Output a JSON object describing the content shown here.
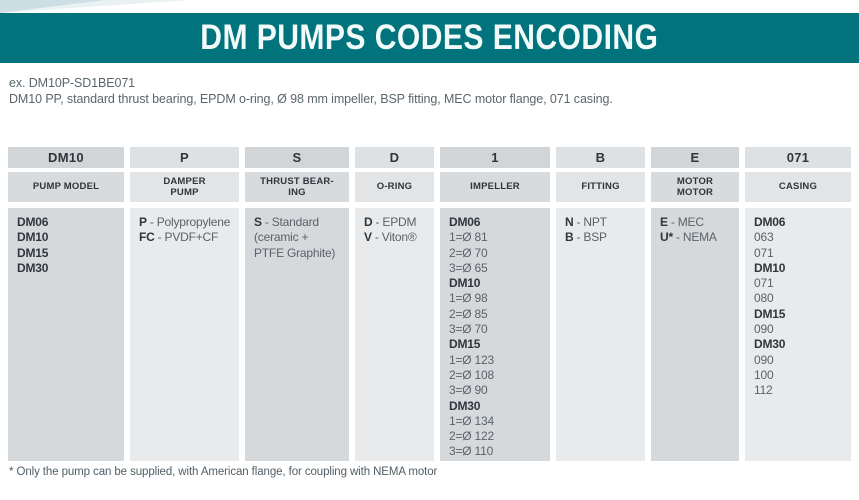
{
  "page": {
    "title": "DM PUMPS CODES ENCODING",
    "example_code": "ex. DM10P-SD1BE071",
    "example_desc": "DM10 PP, standard thrust bearing, EPDM o-ring, Ø 98 mm impeller, BSP fitting, MEC motor flange, 071 casing.",
    "footnote": "* Only the pump can be supplied, with American flange, for coupling with NEMA motor"
  },
  "colors": {
    "accent_teal": "#00737c",
    "column_dark_bg": "#d5d9dc",
    "column_light_bg": "#e8eaec",
    "header_text": "#2f353a",
    "body_text": "#5b6268"
  },
  "table": {
    "columns": [
      {
        "code": "DM10",
        "label": "PUMP MODEL",
        "items": [
          {
            "b": "DM06"
          },
          {
            "b": "DM10"
          },
          {
            "b": "DM15"
          },
          {
            "b": "DM30"
          }
        ]
      },
      {
        "code": "P",
        "label": "DAMPER\nPUMP",
        "items": [
          {
            "b": "P",
            "t": "- Polypropylene"
          },
          {
            "b": "FC",
            "t": "- PVDF+CF"
          }
        ]
      },
      {
        "code": "S",
        "label": "THRUST BEAR-\nING",
        "items": [
          {
            "b": "S",
            "t": "- Standard\n(ceramic +\nPTFE Graphite)"
          }
        ]
      },
      {
        "code": "D",
        "label": "O-RING",
        "items": [
          {
            "b": "D",
            "t": "- EPDM"
          },
          {
            "b": "V",
            "t": "- Viton®"
          }
        ]
      },
      {
        "code": "1",
        "label": "IMPELLER",
        "items": [
          {
            "b": "DM06"
          },
          {
            "t": "1=Ø 81"
          },
          {
            "t": "2=Ø 70"
          },
          {
            "t": "3=Ø 65"
          },
          {
            "b": "DM10"
          },
          {
            "t": "1=Ø 98"
          },
          {
            "t": "2=Ø 85"
          },
          {
            "t": "3=Ø 70"
          },
          {
            "b": "DM15"
          },
          {
            "t": "1=Ø 123"
          },
          {
            "t": "2=Ø 108"
          },
          {
            "t": "3=Ø 90"
          },
          {
            "b": "DM30"
          },
          {
            "t": "1=Ø 134"
          },
          {
            "t": "2=Ø 122"
          },
          {
            "t": "3=Ø 110"
          }
        ]
      },
      {
        "code": "B",
        "label": "FITTING",
        "items": [
          {
            "b": "N",
            "t": "- NPT"
          },
          {
            "b": "B",
            "t": "- BSP"
          }
        ]
      },
      {
        "code": "E",
        "label": "MOTOR\nMOTOR",
        "items": [
          {
            "b": "E",
            "t": "- MEC"
          },
          {
            "b": "U*",
            "t": "- NEMA"
          }
        ]
      },
      {
        "code": "071",
        "label": "CASING",
        "items": [
          {
            "b": "DM06"
          },
          {
            "t": "063"
          },
          {
            "t": "071"
          },
          {
            "b": "DM10"
          },
          {
            "t": "071"
          },
          {
            "t": "080"
          },
          {
            "b": "DM15"
          },
          {
            "t": "090"
          },
          {
            "b": "DM30"
          },
          {
            "t": "090"
          },
          {
            "t": "100"
          },
          {
            "t": "112"
          }
        ]
      }
    ]
  }
}
